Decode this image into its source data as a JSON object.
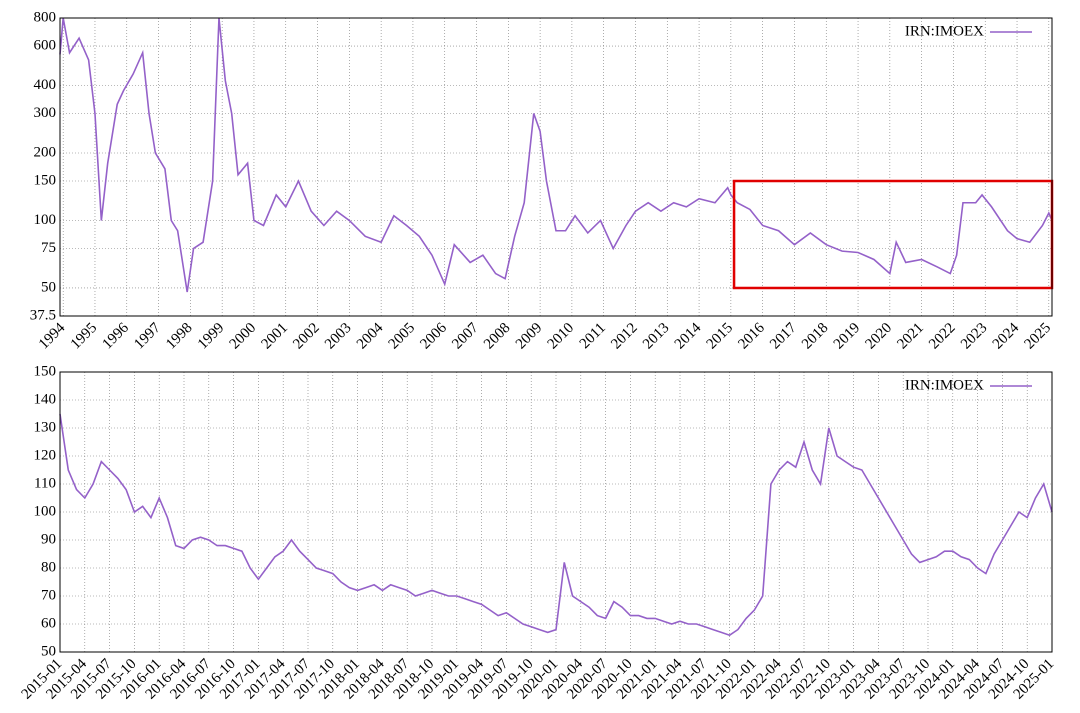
{
  "chart_data": [
    {
      "type": "line",
      "log_y": true,
      "grid": true,
      "legend": "upper right",
      "xlim": [
        1993.9,
        2025.1
      ],
      "xticks": [
        1994,
        1995,
        1996,
        1997,
        1998,
        1999,
        2000,
        2001,
        2002,
        2003,
        2004,
        2005,
        2006,
        2007,
        2008,
        2009,
        2010,
        2011,
        2012,
        2013,
        2014,
        2015,
        2016,
        2017,
        2018,
        2019,
        2020,
        2021,
        2022,
        2023,
        2024,
        2025
      ],
      "ylim": [
        37.5,
        800
      ],
      "yticks": [
        37.5,
        50,
        75,
        100,
        150,
        200,
        300,
        400,
        600,
        800
      ],
      "x": [
        1993.9,
        1994.0,
        1994.2,
        1994.5,
        1994.8,
        1995.0,
        1995.2,
        1995.4,
        1995.7,
        1995.9,
        1996.2,
        1996.5,
        1996.7,
        1996.9,
        1997.2,
        1997.4,
        1997.6,
        1997.9,
        1998.1,
        1998.4,
        1998.7,
        1998.9,
        1999.1,
        1999.3,
        1999.5,
        1999.8,
        2000.0,
        2000.3,
        2000.7,
        2001.0,
        2001.4,
        2001.8,
        2002.2,
        2002.6,
        2003.0,
        2003.5,
        2004.0,
        2004.4,
        2004.8,
        2005.2,
        2005.6,
        2006.0,
        2006.3,
        2006.8,
        2007.2,
        2007.6,
        2007.9,
        2008.2,
        2008.5,
        2008.8,
        2009.0,
        2009.2,
        2009.5,
        2009.8,
        2010.1,
        2010.5,
        2010.9,
        2011.3,
        2011.7,
        2012.0,
        2012.4,
        2012.8,
        2013.2,
        2013.6,
        2014.0,
        2014.5,
        2014.9,
        2015.0,
        2015.2,
        2015.6,
        2016.0,
        2016.5,
        2017.0,
        2017.5,
        2018.0,
        2018.5,
        2019.0,
        2019.5,
        2020.0,
        2020.2,
        2020.5,
        2021.0,
        2021.5,
        2021.9,
        2022.1,
        2022.3,
        2022.7,
        2022.9,
        2023.2,
        2023.7,
        2024.0,
        2024.4,
        2024.8,
        2025.0,
        2025.1
      ],
      "series": [
        {
          "name": "IRN:IMOEX",
          "color": "#9461c9",
          "values": [
            550,
            800,
            560,
            650,
            520,
            300,
            100,
            180,
            330,
            380,
            450,
            560,
            300,
            200,
            170,
            100,
            90,
            48,
            75,
            80,
            150,
            800,
            420,
            300,
            160,
            180,
            100,
            95,
            130,
            115,
            150,
            110,
            95,
            110,
            100,
            85,
            80,
            105,
            95,
            85,
            70,
            52,
            78,
            65,
            70,
            58,
            55,
            85,
            120,
            300,
            250,
            150,
            90,
            90,
            105,
            88,
            100,
            75,
            95,
            110,
            120,
            110,
            120,
            115,
            125,
            120,
            140,
            130,
            120,
            112,
            95,
            90,
            78,
            88,
            78,
            73,
            72,
            67,
            58,
            80,
            65,
            67,
            62,
            58,
            70,
            120,
            120,
            130,
            115,
            90,
            83,
            80,
            95,
            108,
            100
          ]
        }
      ],
      "highlight": {
        "xlim": [
          2015.1,
          2025.1
        ],
        "ylim": [
          50,
          150
        ],
        "color": "#e00000"
      }
    },
    {
      "type": "line",
      "log_y": false,
      "grid": true,
      "legend": "upper right",
      "xlim": [
        "2015-01",
        "2025-01"
      ],
      "xticks": [
        "2015-01",
        "2015-04",
        "2015-07",
        "2015-10",
        "2016-01",
        "2016-04",
        "2016-07",
        "2016-10",
        "2017-01",
        "2017-04",
        "2017-07",
        "2017-10",
        "2018-01",
        "2018-04",
        "2018-07",
        "2018-10",
        "2019-01",
        "2019-04",
        "2019-07",
        "2019-10",
        "2020-01",
        "2020-04",
        "2020-07",
        "2020-10",
        "2021-01",
        "2021-04",
        "2021-07",
        "2021-10",
        "2022-01",
        "2022-04",
        "2022-07",
        "2022-10",
        "2023-01",
        "2023-04",
        "2023-07",
        "2023-10",
        "2024-01",
        "2024-04",
        "2024-07",
        "2024-10",
        "2025-01"
      ],
      "ylim": [
        50,
        150
      ],
      "yticks": [
        50,
        60,
        70,
        80,
        90,
        100,
        110,
        120,
        130,
        140,
        150
      ],
      "x": [
        "2015-01",
        "2015-02",
        "2015-03",
        "2015-04",
        "2015-05",
        "2015-06",
        "2015-07",
        "2015-08",
        "2015-09",
        "2015-10",
        "2015-11",
        "2015-12",
        "2016-01",
        "2016-02",
        "2016-03",
        "2016-04",
        "2016-05",
        "2016-06",
        "2016-07",
        "2016-08",
        "2016-09",
        "2016-10",
        "2016-11",
        "2016-12",
        "2017-01",
        "2017-02",
        "2017-03",
        "2017-04",
        "2017-05",
        "2017-06",
        "2017-07",
        "2017-08",
        "2017-09",
        "2017-10",
        "2017-11",
        "2017-12",
        "2018-01",
        "2018-02",
        "2018-03",
        "2018-04",
        "2018-05",
        "2018-06",
        "2018-07",
        "2018-08",
        "2018-09",
        "2018-10",
        "2018-11",
        "2018-12",
        "2019-01",
        "2019-02",
        "2019-03",
        "2019-04",
        "2019-05",
        "2019-06",
        "2019-07",
        "2019-08",
        "2019-09",
        "2019-10",
        "2019-11",
        "2019-12",
        "2020-01",
        "2020-02",
        "2020-03",
        "2020-04",
        "2020-05",
        "2020-06",
        "2020-07",
        "2020-08",
        "2020-09",
        "2020-10",
        "2020-11",
        "2020-12",
        "2021-01",
        "2021-02",
        "2021-03",
        "2021-04",
        "2021-05",
        "2021-06",
        "2021-07",
        "2021-08",
        "2021-09",
        "2021-10",
        "2021-11",
        "2021-12",
        "2022-01",
        "2022-02",
        "2022-03",
        "2022-04",
        "2022-05",
        "2022-06",
        "2022-07",
        "2022-08",
        "2022-09",
        "2022-10",
        "2022-11",
        "2022-12",
        "2023-01",
        "2023-02",
        "2023-03",
        "2023-04",
        "2023-05",
        "2023-06",
        "2023-07",
        "2023-08",
        "2023-09",
        "2023-10",
        "2023-11",
        "2023-12",
        "2024-01",
        "2024-02",
        "2024-03",
        "2024-04",
        "2024-05",
        "2024-06",
        "2024-07",
        "2024-08",
        "2024-09",
        "2024-10",
        "2024-11",
        "2024-12",
        "2025-01"
      ],
      "series": [
        {
          "name": "IRN:IMOEX",
          "color": "#9461c9",
          "values": [
            135,
            115,
            108,
            105,
            110,
            118,
            115,
            112,
            108,
            100,
            102,
            98,
            105,
            98,
            88,
            87,
            90,
            91,
            90,
            88,
            88,
            87,
            86,
            80,
            76,
            80,
            84,
            86,
            90,
            86,
            83,
            80,
            79,
            78,
            75,
            73,
            72,
            73,
            74,
            72,
            74,
            73,
            72,
            70,
            71,
            72,
            71,
            70,
            70,
            69,
            68,
            67,
            65,
            63,
            64,
            62,
            60,
            59,
            58,
            57,
            58,
            82,
            70,
            68,
            66,
            63,
            62,
            68,
            66,
            63,
            63,
            62,
            62,
            61,
            60,
            61,
            60,
            60,
            59,
            58,
            57,
            56,
            58,
            62,
            65,
            70,
            110,
            115,
            118,
            116,
            125,
            115,
            110,
            130,
            120,
            118,
            116,
            115,
            110,
            105,
            100,
            95,
            90,
            85,
            82,
            83,
            84,
            86,
            86,
            84,
            83,
            80,
            78,
            85,
            90,
            95,
            100,
            98,
            105,
            110,
            100
          ]
        }
      ]
    }
  ]
}
